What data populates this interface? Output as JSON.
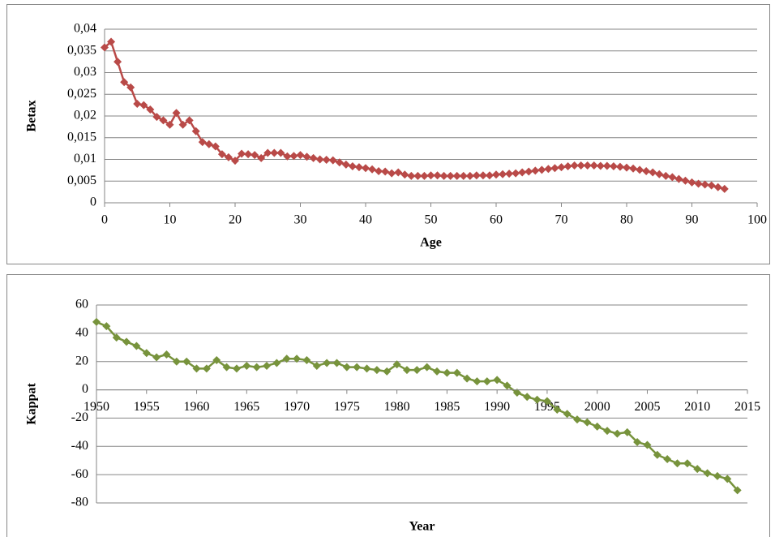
{
  "chart_data": [
    {
      "type": "line",
      "x_label": "Age",
      "y_label": "Betax",
      "color": "#b94a48",
      "grid": true,
      "x": [
        0,
        1,
        2,
        3,
        4,
        5,
        6,
        7,
        8,
        9,
        10,
        11,
        12,
        13,
        14,
        15,
        16,
        17,
        18,
        19,
        20,
        21,
        22,
        23,
        24,
        25,
        26,
        27,
        28,
        29,
        30,
        31,
        32,
        33,
        34,
        35,
        36,
        37,
        38,
        39,
        40,
        41,
        42,
        43,
        44,
        45,
        46,
        47,
        48,
        49,
        50,
        51,
        52,
        53,
        54,
        55,
        56,
        57,
        58,
        59,
        60,
        61,
        62,
        63,
        64,
        65,
        66,
        67,
        68,
        69,
        70,
        71,
        72,
        73,
        74,
        75,
        76,
        77,
        78,
        79,
        80,
        81,
        82,
        83,
        84,
        85,
        86,
        87,
        88,
        89,
        90,
        91,
        92,
        93,
        94,
        95
      ],
      "values": [
        0.0358,
        0.0371,
        0.0325,
        0.0278,
        0.0266,
        0.0228,
        0.0225,
        0.0215,
        0.0198,
        0.019,
        0.018,
        0.0207,
        0.018,
        0.019,
        0.0165,
        0.014,
        0.0135,
        0.013,
        0.0112,
        0.0105,
        0.0097,
        0.0113,
        0.0112,
        0.011,
        0.0103,
        0.0115,
        0.0115,
        0.0115,
        0.0107,
        0.0108,
        0.011,
        0.0106,
        0.0103,
        0.01,
        0.0099,
        0.0098,
        0.0093,
        0.0088,
        0.0084,
        0.0082,
        0.008,
        0.0077,
        0.0073,
        0.0072,
        0.0068,
        0.007,
        0.0065,
        0.0062,
        0.0062,
        0.0062,
        0.0063,
        0.0063,
        0.0062,
        0.0062,
        0.0062,
        0.0062,
        0.0062,
        0.0063,
        0.0063,
        0.0063,
        0.0065,
        0.0066,
        0.0067,
        0.0068,
        0.007,
        0.0072,
        0.0074,
        0.0076,
        0.0078,
        0.008,
        0.0082,
        0.0084,
        0.0086,
        0.0086,
        0.0086,
        0.0086,
        0.0085,
        0.0085,
        0.0084,
        0.0083,
        0.0081,
        0.0079,
        0.0076,
        0.0073,
        0.007,
        0.0066,
        0.0062,
        0.0059,
        0.0055,
        0.0051,
        0.0047,
        0.0044,
        0.0042,
        0.004,
        0.0036,
        0.0032
      ],
      "xlim": [
        0,
        100
      ],
      "xticks": [
        0,
        10,
        20,
        30,
        40,
        50,
        60,
        70,
        80,
        90,
        100
      ],
      "ylim": [
        0,
        0.04
      ],
      "yticks": [
        0,
        {
          "value": 0.005,
          "label": "0,005"
        },
        {
          "value": 0.01,
          "label": "0,01"
        },
        {
          "value": 0.015,
          "label": "0,015"
        },
        {
          "value": 0.02,
          "label": "0,02"
        },
        {
          "value": 0.025,
          "label": "0,025"
        },
        {
          "value": 0.03,
          "label": "0,03"
        },
        {
          "value": 0.035,
          "label": "0,035"
        },
        {
          "value": 0.04,
          "label": "0,04"
        }
      ]
    },
    {
      "type": "line",
      "x_label": "Year",
      "y_label": "Kappat",
      "color": "#77933c",
      "grid": true,
      "x": [
        1950,
        1951,
        1952,
        1953,
        1954,
        1955,
        1956,
        1957,
        1958,
        1959,
        1960,
        1961,
        1962,
        1963,
        1964,
        1965,
        1966,
        1967,
        1968,
        1969,
        1970,
        1971,
        1972,
        1973,
        1974,
        1975,
        1976,
        1977,
        1978,
        1979,
        1980,
        1981,
        1982,
        1983,
        1984,
        1985,
        1986,
        1987,
        1988,
        1989,
        1990,
        1991,
        1992,
        1993,
        1994,
        1995,
        1996,
        1997,
        1998,
        1999,
        2000,
        2001,
        2002,
        2003,
        2004,
        2005,
        2006,
        2007,
        2008,
        2009,
        2010,
        2011,
        2012,
        2013,
        2014
      ],
      "values": [
        48,
        45,
        37,
        34,
        31,
        26,
        23,
        25,
        20,
        20,
        15,
        15,
        21,
        16,
        15,
        17,
        16,
        17,
        19,
        22,
        22,
        21,
        17,
        19,
        19,
        16,
        16,
        15,
        14,
        13,
        18,
        14,
        14,
        16,
        13,
        12,
        12,
        8,
        6,
        6,
        7,
        3,
        -2,
        -5,
        -7,
        -8,
        -14,
        -17,
        -21,
        -23,
        -26,
        -29,
        -31,
        -30,
        -37,
        -39,
        -46,
        -49,
        -52,
        -52,
        -56,
        -59,
        -61,
        -63,
        -71
      ],
      "xlim": [
        1950,
        2015
      ],
      "xticks": [
        1950,
        1955,
        1960,
        1965,
        1970,
        1975,
        1980,
        1985,
        1990,
        1995,
        2000,
        2005,
        2010,
        2015
      ],
      "ylim": [
        -80,
        60
      ],
      "yticks": [
        -80,
        -60,
        -40,
        -20,
        0,
        20,
        40,
        60
      ]
    }
  ]
}
